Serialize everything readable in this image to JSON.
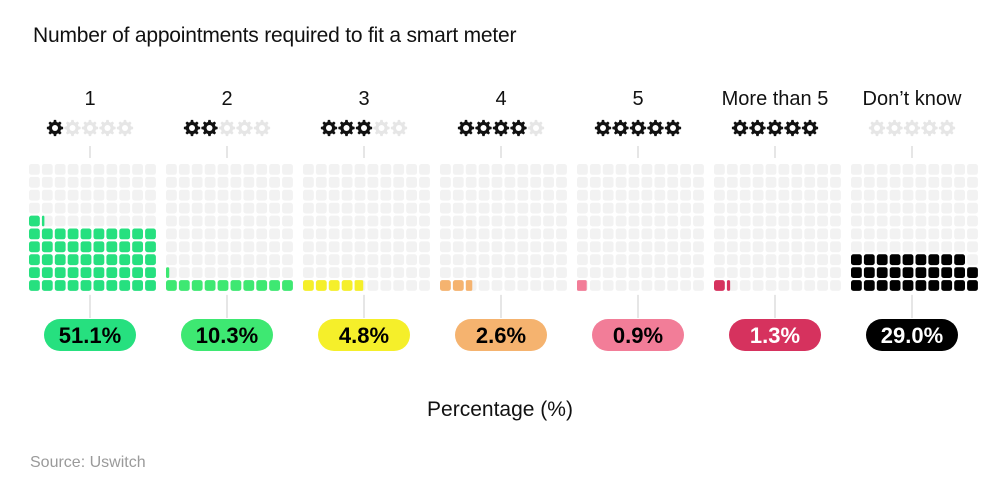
{
  "title": "Number of appointments required to fit a smart meter",
  "source": "Source: Uswitch",
  "colors": {
    "empty_cell": "#f2f2f2",
    "gear_active": "#111111",
    "gear_inactive": "#e6e6e6",
    "connector": "#cccccc"
  },
  "chart_data": {
    "type": "waffle",
    "title": "Number of appointments required to fit a smart meter",
    "xlabel": "Percentage (%)",
    "grid": "10x10 waffle per category",
    "categories": [
      "1",
      "2",
      "3",
      "4",
      "5",
      "More than 5",
      "Don’t know"
    ],
    "values": [
      51.1,
      10.3,
      4.8,
      2.6,
      0.9,
      1.3,
      29.0
    ],
    "value_labels": [
      "51.1%",
      "10.3%",
      "4.8%",
      "2.6%",
      "0.9%",
      "1.3%",
      "29.0%"
    ],
    "gears_active": [
      1,
      2,
      3,
      4,
      5,
      5,
      0
    ],
    "gears_total": 5,
    "gear_icon": "gear-icon",
    "series_colors": [
      "#26e07f",
      "#3ee872",
      "#f5ef2a",
      "#f5b36f",
      "#f27d98",
      "#d6325e",
      "#000000"
    ],
    "label_text_colors": [
      "#000000",
      "#000000",
      "#000000",
      "#000000",
      "#000000",
      "#ffffff",
      "#ffffff"
    ]
  }
}
